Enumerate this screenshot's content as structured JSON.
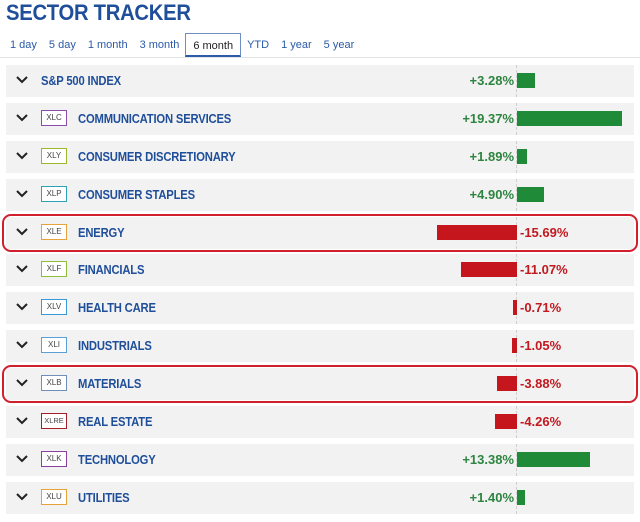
{
  "title": "SECTOR TRACKER",
  "tabs": [
    {
      "label": "1 day",
      "active": false
    },
    {
      "label": "5 day",
      "active": false
    },
    {
      "label": "1 month",
      "active": false
    },
    {
      "label": "3 month",
      "active": false
    },
    {
      "label": "6 month",
      "active": true
    },
    {
      "label": "YTD",
      "active": false
    },
    {
      "label": "1 year",
      "active": false
    },
    {
      "label": "5 year",
      "active": false
    }
  ],
  "colors": {
    "positive": "#2e8540",
    "negative": "#c2181f",
    "highlight": "#d0202e",
    "title": "#1f4e9a"
  },
  "sectors": [
    {
      "ticker": "",
      "ticker_color": "",
      "name": "S&P 500 INDEX",
      "change": "+3.28%",
      "pct": 3.28,
      "highlighted": false
    },
    {
      "ticker": "XLC",
      "ticker_color": "#8a4fa8",
      "name": "COMMUNICATION SERVICES",
      "change": "+19.37%",
      "pct": 19.37,
      "highlighted": false
    },
    {
      "ticker": "XLY",
      "ticker_color": "#9ab82a",
      "name": "CONSUMER DISCRETIONARY",
      "change": "+1.89%",
      "pct": 1.89,
      "highlighted": false
    },
    {
      "ticker": "XLP",
      "ticker_color": "#2fa3b5",
      "name": "CONSUMER STAPLES",
      "change": "+4.90%",
      "pct": 4.9,
      "highlighted": false
    },
    {
      "ticker": "XLE",
      "ticker_color": "#e8a23a",
      "name": "ENERGY",
      "change": "-15.69%",
      "pct": -15.69,
      "highlighted": true
    },
    {
      "ticker": "XLF",
      "ticker_color": "#8fbf3a",
      "name": "FINANCIALS",
      "change": "-11.07%",
      "pct": -11.07,
      "highlighted": false
    },
    {
      "ticker": "XLV",
      "ticker_color": "#3a9ad9",
      "name": "HEALTH CARE",
      "change": "-0.71%",
      "pct": -0.71,
      "highlighted": false
    },
    {
      "ticker": "XLI",
      "ticker_color": "#5aa0d6",
      "name": "INDUSTRIALS",
      "change": "-1.05%",
      "pct": -1.05,
      "highlighted": false
    },
    {
      "ticker": "XLB",
      "ticker_color": "#6f8fb8",
      "name": "MATERIALS",
      "change": "-3.88%",
      "pct": -3.88,
      "highlighted": true
    },
    {
      "ticker": "XLRE",
      "ticker_color": "#a3202a",
      "name": "REAL ESTATE",
      "change": "-4.26%",
      "pct": -4.26,
      "highlighted": false
    },
    {
      "ticker": "XLK",
      "ticker_color": "#8a3fa0",
      "name": "TECHNOLOGY",
      "change": "+13.38%",
      "pct": 13.38,
      "highlighted": false
    },
    {
      "ticker": "XLU",
      "ticker_color": "#e8a23a",
      "name": "UTILITIES",
      "change": "+1.40%",
      "pct": 1.4,
      "highlighted": false
    }
  ]
}
